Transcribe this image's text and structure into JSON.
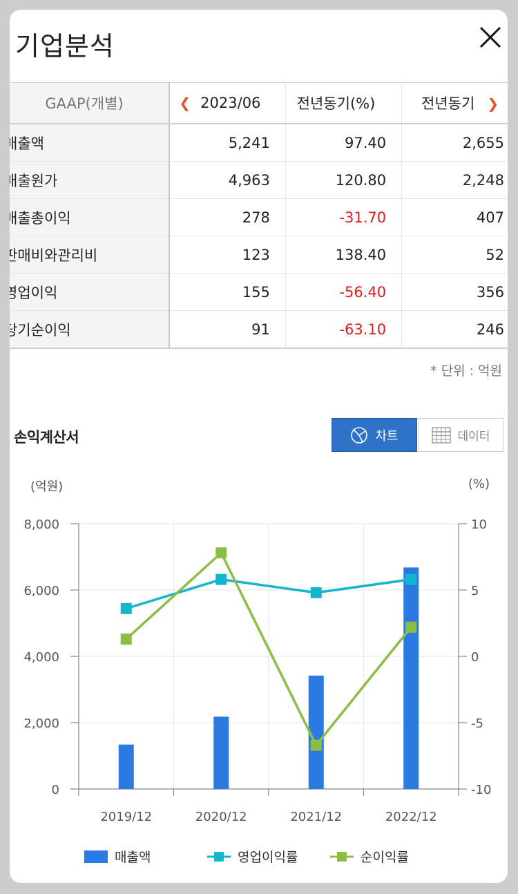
{
  "header": {
    "title": "기업분석"
  },
  "table": {
    "head": {
      "label": "GAAP(개별)",
      "period": "2023/06",
      "yoy_pct": "전년동기(%)",
      "yoy": "전년동기"
    },
    "rows": [
      {
        "label": "매출액",
        "v": "5,241",
        "pct": "97.40",
        "prev": "2,655",
        "neg": false
      },
      {
        "label": "매출원가",
        "v": "4,963",
        "pct": "120.80",
        "prev": "2,248",
        "neg": false
      },
      {
        "label": "매출총이익",
        "v": "278",
        "pct": "-31.70",
        "prev": "407",
        "neg": true
      },
      {
        "label": "판매비와관리비",
        "v": "123",
        "pct": "138.40",
        "prev": "52",
        "neg": false
      },
      {
        "label": "영업이익",
        "v": "155",
        "pct": "-56.40",
        "prev": "356",
        "neg": true
      },
      {
        "label": "당기순이익",
        "v": "91",
        "pct": "-63.10",
        "prev": "246",
        "neg": true
      }
    ]
  },
  "unit_note": "* 단위 : 억원",
  "section": {
    "title": "손익계산서",
    "tab_chart": "차트",
    "tab_data": "데이터"
  },
  "chart_data": {
    "type": "bar",
    "categories": [
      "2019/12",
      "2020/12",
      "2021/12",
      "2022/12"
    ],
    "y_left_label": "(억원)",
    "y_right_label": "(%)",
    "y_left_ticks": [
      "8,000",
      "6,000",
      "4,000",
      "2,000",
      "0"
    ],
    "y_right_ticks": [
      "10",
      "5",
      "0",
      "-5",
      "-10"
    ],
    "ylim_left": [
      0,
      8000
    ],
    "ylim_right": [
      -10,
      10
    ],
    "grid": true,
    "legend_position": "bottom",
    "series": [
      {
        "name": "매출액",
        "type": "bar",
        "axis": "left",
        "color": "#2a7ae2",
        "values": [
          1340,
          2180,
          3420,
          6680
        ]
      },
      {
        "name": "영업이익률",
        "type": "line",
        "axis": "right",
        "color": "#13b5cf",
        "values": [
          3.6,
          5.8,
          4.8,
          5.8
        ]
      },
      {
        "name": "순이익률",
        "type": "line",
        "axis": "right",
        "color": "#8cbd45",
        "values": [
          1.3,
          7.8,
          -6.7,
          2.2
        ]
      }
    ]
  }
}
